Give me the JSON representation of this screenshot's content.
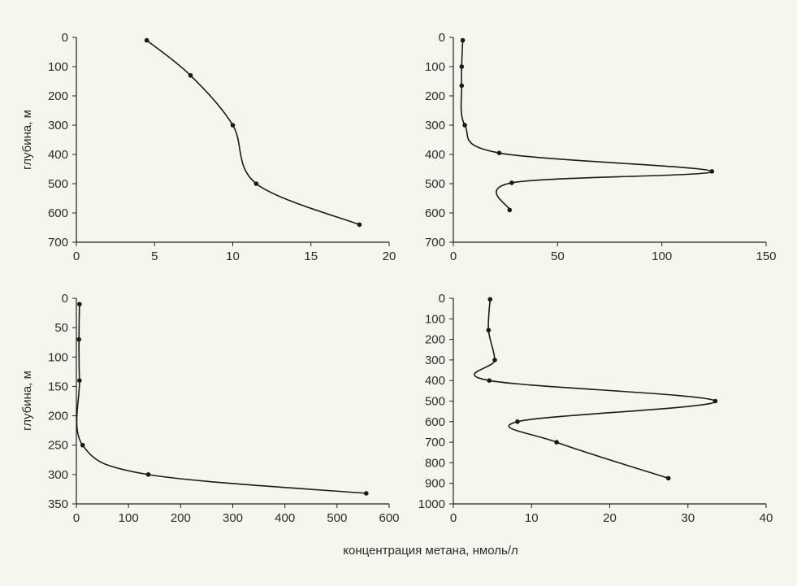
{
  "figure": {
    "common_xlabel": "концентрация метана, нмоль/л",
    "background": "#f3f7ee",
    "line_color": "#1a1a1a"
  },
  "chart_data": [
    {
      "type": "line",
      "ylabel": "глубина, м",
      "xlim": [
        0,
        20
      ],
      "ylim": [
        0,
        700
      ],
      "y_inverted": true,
      "xticks": [
        0,
        5,
        10,
        15,
        20
      ],
      "yticks": [
        0,
        100,
        200,
        300,
        400,
        500,
        600,
        700
      ],
      "series": [
        {
          "x": [
            4.5,
            7.3,
            10.0,
            11.5,
            18.1
          ],
          "y": [
            10,
            130,
            300,
            500,
            640
          ]
        }
      ]
    },
    {
      "type": "line",
      "ylabel": "",
      "xlim": [
        0,
        150
      ],
      "ylim": [
        0,
        700
      ],
      "y_inverted": true,
      "xticks": [
        0,
        50,
        100,
        150
      ],
      "yticks": [
        0,
        100,
        200,
        300,
        400,
        500,
        600,
        700
      ],
      "series": [
        {
          "x": [
            4.5,
            4,
            4,
            5.5,
            22,
            124,
            28,
            27
          ],
          "y": [
            10,
            100,
            165,
            300,
            395,
            458,
            497,
            590
          ]
        }
      ]
    },
    {
      "type": "line",
      "ylabel": "глубина, м",
      "xlim": [
        0,
        600
      ],
      "ylim": [
        0,
        350
      ],
      "y_inverted": true,
      "xticks": [
        0,
        100,
        200,
        300,
        400,
        500,
        600
      ],
      "yticks": [
        0,
        50,
        100,
        150,
        200,
        250,
        300,
        350
      ],
      "series": [
        {
          "x": [
            6,
            5,
            6,
            12,
            138,
            556
          ],
          "y": [
            10,
            70,
            140,
            250,
            300,
            332
          ]
        }
      ]
    },
    {
      "type": "line",
      "ylabel": "",
      "xlim": [
        0,
        40
      ],
      "ylim": [
        0,
        1000
      ],
      "y_inverted": true,
      "xticks": [
        0,
        10,
        20,
        30,
        40
      ],
      "yticks": [
        0,
        100,
        200,
        300,
        400,
        500,
        600,
        700,
        800,
        900,
        1000
      ],
      "series": [
        {
          "x": [
            4.7,
            4.5,
            5.3,
            4.6,
            33.5,
            8.2,
            13.2,
            27.5
          ],
          "y": [
            5,
            155,
            300,
            400,
            500,
            600,
            700,
            875
          ]
        }
      ]
    }
  ]
}
